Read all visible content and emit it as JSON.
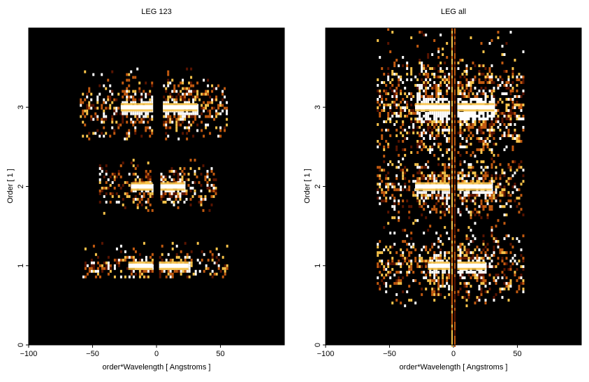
{
  "colors": {
    "background": "#000000",
    "hot": "#ffffff",
    "warm": "#f7c34a",
    "mid": "#c25a10",
    "low": "#5a1400"
  },
  "chart_data": [
    {
      "type": "heatmap",
      "title": "LEG 123",
      "xlabel": "order*Wavelength [ Angstroms ]",
      "ylabel": "Order [ 1 ]",
      "xlim": [
        -100,
        100
      ],
      "ylim": [
        0,
        4
      ],
      "xticks": [
        -100,
        -50,
        0,
        50
      ],
      "yticks": [
        0,
        1,
        2,
        3
      ],
      "bands": [
        {
          "order": 3,
          "y0": 2.6,
          "y1": 3.5,
          "left": [
            -60,
            -3
          ],
          "right": [
            5,
            55
          ],
          "core_left": [
            -28,
            -3
          ],
          "core_right": [
            5,
            32
          ]
        },
        {
          "order": 2,
          "y0": 1.65,
          "y1": 2.35,
          "left": [
            -45,
            -3
          ],
          "right": [
            3,
            47
          ],
          "core_left": [
            -20,
            -3
          ],
          "core_right": [
            3,
            22
          ]
        },
        {
          "order": 1,
          "y0": 0.85,
          "y1": 1.3,
          "left": [
            -58,
            -3
          ],
          "right": [
            2,
            55
          ],
          "core_left": [
            -22,
            -3
          ],
          "core_right": [
            2,
            25
          ]
        }
      ]
    },
    {
      "type": "heatmap",
      "title": "LEG all",
      "xlabel": "order*Wavelength [ Angstroms ]",
      "ylabel": "Order [ 1 ]",
      "xlim": [
        -100,
        100
      ],
      "ylim": [
        0,
        4
      ],
      "xticks": [
        -100,
        -50,
        0,
        50
      ],
      "yticks": [
        0,
        1,
        2,
        3
      ],
      "bands": [
        {
          "order": 3,
          "y0": 2.4,
          "y1": 4.0,
          "left": [
            -60,
            -3
          ],
          "right": [
            3,
            55
          ],
          "core_left": [
            -30,
            -3
          ],
          "core_right": [
            3,
            32
          ]
        },
        {
          "order": 2,
          "y0": 1.5,
          "y1": 2.4,
          "left": [
            -60,
            -3
          ],
          "right": [
            3,
            55
          ],
          "core_left": [
            -30,
            -3
          ],
          "core_right": [
            3,
            30
          ]
        },
        {
          "order": 1,
          "y0": 0.5,
          "y1": 1.5,
          "left": [
            -60,
            -3
          ],
          "right": [
            3,
            55
          ],
          "core_left": [
            -20,
            -3
          ],
          "core_right": [
            3,
            25
          ]
        }
      ]
    }
  ]
}
